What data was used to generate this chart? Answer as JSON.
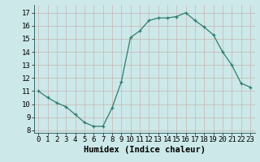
{
  "x": [
    0,
    1,
    2,
    3,
    4,
    5,
    6,
    7,
    8,
    9,
    10,
    11,
    12,
    13,
    14,
    15,
    16,
    17,
    18,
    19,
    20,
    21,
    22,
    23
  ],
  "y": [
    11.0,
    10.5,
    10.1,
    9.8,
    9.2,
    8.6,
    8.3,
    8.3,
    9.7,
    11.7,
    15.1,
    15.6,
    16.4,
    16.6,
    16.6,
    16.7,
    17.0,
    16.4,
    15.9,
    15.3,
    14.0,
    13.0,
    11.6,
    11.3
  ],
  "xlim": [
    -0.5,
    23.5
  ],
  "ylim": [
    7.8,
    17.6
  ],
  "yticks": [
    8,
    9,
    10,
    11,
    12,
    13,
    14,
    15,
    16,
    17
  ],
  "xticks": [
    0,
    1,
    2,
    3,
    4,
    5,
    6,
    7,
    8,
    9,
    10,
    11,
    12,
    13,
    14,
    15,
    16,
    17,
    18,
    19,
    20,
    21,
    22,
    23
  ],
  "xlabel": "Humidex (Indice chaleur)",
  "line_color": "#2e7d6e",
  "bg_color": "#cce8e8",
  "grid_color": "#b8d8d0",
  "tick_label_size": 6.5,
  "xlabel_size": 7.5
}
